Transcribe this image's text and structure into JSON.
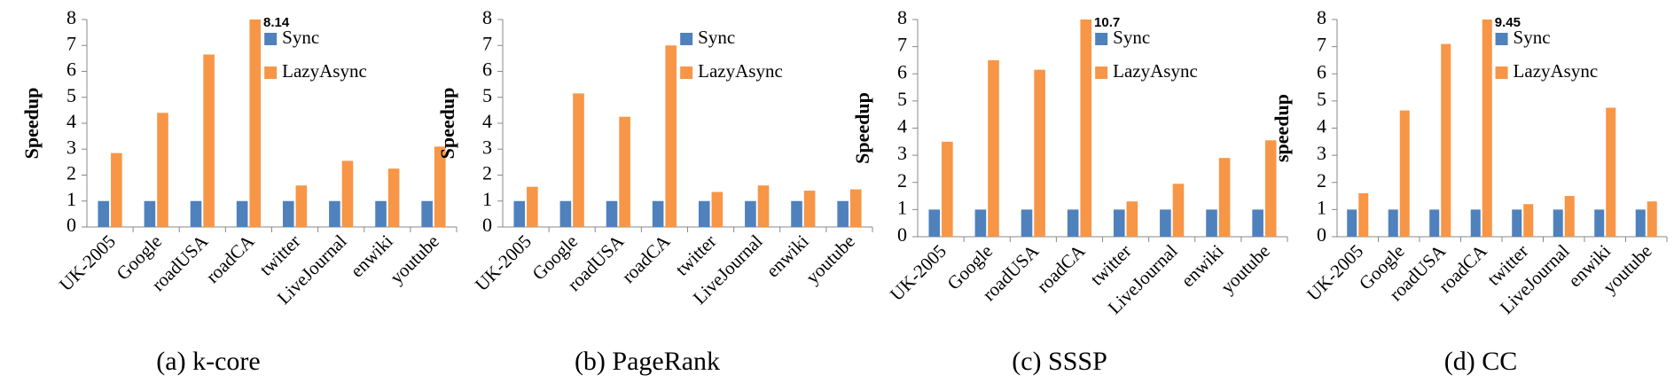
{
  "chart_data": [
    {
      "type": "bar",
      "caption": "(a)  k-core",
      "ylabel": "Speedup",
      "categories": [
        "UK-2005",
        "Google",
        "roadUSA",
        "roadCA",
        "twitter",
        "LiveJournal",
        "enwiki",
        "youtube"
      ],
      "series": [
        {
          "name": "Sync",
          "color": "#4f81bd",
          "values": [
            1,
            1,
            1,
            1,
            1,
            1,
            1,
            1
          ]
        },
        {
          "name": "LazyAsync",
          "color": "#f79646",
          "values": [
            2.85,
            4.4,
            6.65,
            8.14,
            1.6,
            2.55,
            2.25,
            3.1
          ],
          "value_labels": [
            null,
            null,
            null,
            "8.14",
            null,
            null,
            null,
            null
          ]
        }
      ],
      "ylim": [
        0,
        8
      ],
      "yticks": [
        0,
        1,
        2,
        3,
        4,
        5,
        6,
        7,
        8
      ]
    },
    {
      "type": "bar",
      "caption": "(b) PageRank",
      "ylabel": "Speedup",
      "categories": [
        "UK-2005",
        "Google",
        "roadUSA",
        "roadCA",
        "twitter",
        "LiveJournal",
        "enwiki",
        "youtube"
      ],
      "series": [
        {
          "name": "Sync",
          "color": "#4f81bd",
          "values": [
            1,
            1,
            1,
            1,
            1,
            1,
            1,
            1
          ]
        },
        {
          "name": "LazyAsync",
          "color": "#f79646",
          "values": [
            1.55,
            5.15,
            4.25,
            7.0,
            1.35,
            1.6,
            1.4,
            1.45
          ]
        }
      ],
      "ylim": [
        0,
        8
      ],
      "yticks": [
        0,
        1,
        2,
        3,
        4,
        5,
        6,
        7,
        8
      ]
    },
    {
      "type": "bar",
      "caption": "(c) SSSP",
      "ylabel": "Speedup",
      "categories": [
        "UK-2005",
        "Google",
        "roadUSA",
        "roadCA",
        "twitter",
        "LiveJournal",
        "enwiki",
        "youtube"
      ],
      "series": [
        {
          "name": "Sync",
          "color": "#4f81bd",
          "values": [
            1,
            1,
            1,
            1,
            1,
            1,
            1,
            1
          ]
        },
        {
          "name": "LazyAsync",
          "color": "#f79646",
          "values": [
            3.5,
            6.5,
            6.15,
            10.7,
            1.3,
            1.95,
            2.9,
            3.55
          ],
          "value_labels": [
            null,
            null,
            null,
            "10.7",
            null,
            null,
            null,
            null
          ]
        }
      ],
      "ylim": [
        0,
        8
      ],
      "yticks": [
        0,
        1,
        2,
        3,
        4,
        5,
        6,
        7,
        8
      ]
    },
    {
      "type": "bar",
      "caption": "(d) CC",
      "ylabel": "speedup",
      "categories": [
        "UK-2005",
        "Google",
        "roadUSA",
        "roadCA",
        "twitter",
        "LiveJournal",
        "enwiki",
        "youtube"
      ],
      "series": [
        {
          "name": "Sync",
          "color": "#4f81bd",
          "values": [
            1,
            1,
            1,
            1,
            1,
            1,
            1,
            1
          ]
        },
        {
          "name": "LazyAsync",
          "color": "#f79646",
          "values": [
            1.6,
            4.65,
            7.1,
            9.45,
            1.2,
            1.5,
            4.75,
            1.3
          ],
          "value_labels": [
            null,
            null,
            null,
            "9.45",
            null,
            null,
            null,
            null
          ]
        }
      ],
      "ylim": [
        0,
        8
      ],
      "yticks": [
        0,
        1,
        2,
        3,
        4,
        5,
        6,
        7,
        8
      ]
    }
  ]
}
